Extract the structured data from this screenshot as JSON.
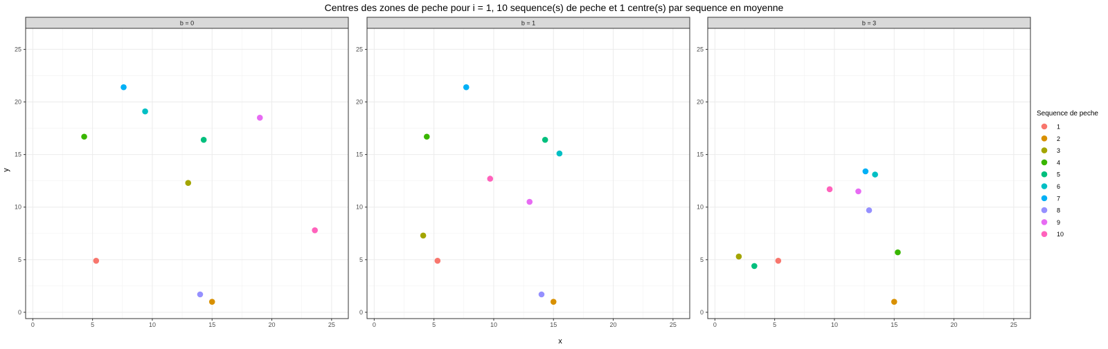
{
  "chart_data": {
    "type": "scatter",
    "title": "Centres des zones de peche pour i = 1, 10 sequence(s) de peche et 1 centre(s) par sequence en moyenne",
    "xlabel": "x",
    "ylabel": "y",
    "xlim": [
      -0.6,
      26.4
    ],
    "ylim": [
      -0.6,
      27.0
    ],
    "x_ticks": [
      0,
      5,
      10,
      15,
      20,
      25
    ],
    "y_ticks": [
      0,
      5,
      10,
      15,
      20,
      25
    ],
    "grid": true,
    "legend": {
      "title": "Sequence de peche",
      "position": "right",
      "entries": [
        "1",
        "2",
        "3",
        "4",
        "5",
        "6",
        "7",
        "8",
        "9",
        "10"
      ]
    },
    "colors": {
      "1": "#F8766D",
      "2": "#D89000",
      "3": "#A3A500",
      "4": "#39B600",
      "5": "#00BF7D",
      "6": "#00BFC4",
      "7": "#00B0F6",
      "8": "#9590FF",
      "9": "#E76BF3",
      "10": "#FF62BC"
    },
    "panels": [
      {
        "label": "b = 0",
        "points": [
          {
            "seq": "1",
            "x": 5.3,
            "y": 4.9
          },
          {
            "seq": "2",
            "x": 15.0,
            "y": 1.0
          },
          {
            "seq": "3",
            "x": 13.0,
            "y": 12.3
          },
          {
            "seq": "4",
            "x": 4.3,
            "y": 16.7
          },
          {
            "seq": "5",
            "x": 14.3,
            "y": 16.4
          },
          {
            "seq": "6",
            "x": 9.4,
            "y": 19.1
          },
          {
            "seq": "7",
            "x": 7.6,
            "y": 21.4
          },
          {
            "seq": "8",
            "x": 14.0,
            "y": 1.7
          },
          {
            "seq": "9",
            "x": 19.0,
            "y": 18.5
          },
          {
            "seq": "10",
            "x": 23.6,
            "y": 7.8
          }
        ]
      },
      {
        "label": "b = 1",
        "points": [
          {
            "seq": "1",
            "x": 5.3,
            "y": 4.9
          },
          {
            "seq": "2",
            "x": 15.0,
            "y": 1.0
          },
          {
            "seq": "3",
            "x": 4.1,
            "y": 7.3
          },
          {
            "seq": "4",
            "x": 4.4,
            "y": 16.7
          },
          {
            "seq": "5",
            "x": 14.3,
            "y": 16.4
          },
          {
            "seq": "6",
            "x": 15.5,
            "y": 15.1
          },
          {
            "seq": "7",
            "x": 7.7,
            "y": 21.4
          },
          {
            "seq": "8",
            "x": 14.0,
            "y": 1.7
          },
          {
            "seq": "9",
            "x": 13.0,
            "y": 10.5
          },
          {
            "seq": "10",
            "x": 9.7,
            "y": 12.7
          }
        ]
      },
      {
        "label": "b = 3",
        "points": [
          {
            "seq": "1",
            "x": 5.3,
            "y": 4.9
          },
          {
            "seq": "2",
            "x": 15.0,
            "y": 1.0
          },
          {
            "seq": "3",
            "x": 2.0,
            "y": 5.3
          },
          {
            "seq": "4",
            "x": 15.3,
            "y": 5.7
          },
          {
            "seq": "5",
            "x": 3.3,
            "y": 4.4
          },
          {
            "seq": "6",
            "x": 13.4,
            "y": 13.1
          },
          {
            "seq": "7",
            "x": 12.6,
            "y": 13.4
          },
          {
            "seq": "8",
            "x": 12.9,
            "y": 9.7
          },
          {
            "seq": "9",
            "x": 12.0,
            "y": 11.5
          },
          {
            "seq": "10",
            "x": 9.6,
            "y": 11.7
          }
        ]
      }
    ]
  }
}
